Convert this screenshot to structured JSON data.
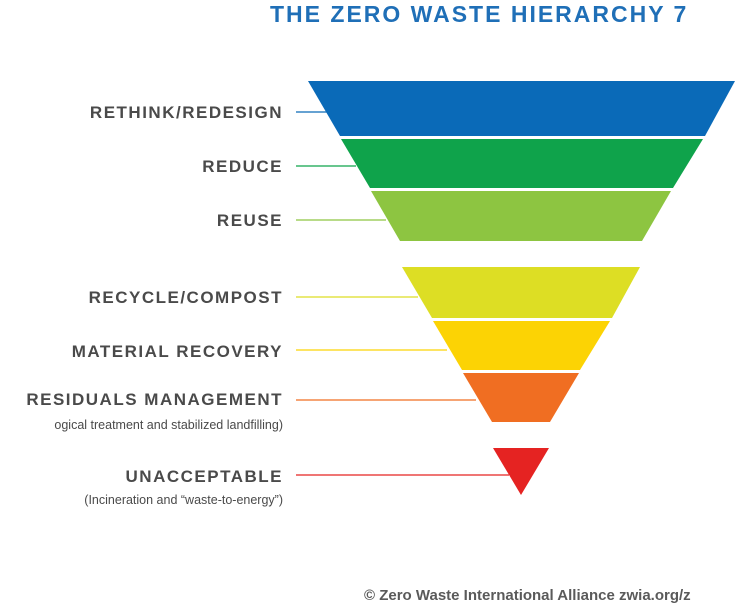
{
  "title": "THE ZERO WASTE HIERARCHY 7",
  "colors": {
    "title": "#1F6FB7",
    "label_text": "#4A4A4A",
    "credit_text": "#5A5A5A"
  },
  "levels": [
    {
      "label": "RETHINK/REDESIGN",
      "subtitle": "",
      "color": "#0A6AB8"
    },
    {
      "label": "REDUCE",
      "subtitle": "",
      "color": "#0FA34B"
    },
    {
      "label": "REUSE",
      "subtitle": "",
      "color": "#8DC541"
    },
    {
      "label": "RECYCLE/COMPOST",
      "subtitle": "",
      "color": "#DDDE24"
    },
    {
      "label": "MATERIAL RECOVERY",
      "subtitle": "",
      "color": "#FCD304"
    },
    {
      "label": "RESIDUALS MANAGEMENT",
      "subtitle": "ogical treatment and stabilized landfilling)",
      "color": "#F06E22"
    },
    {
      "label": "UNACCEPTABLE",
      "subtitle": "(Incineration and “waste-to-energy”)",
      "color": "#E52322"
    }
  ],
  "credit": "© Zero Waste International Alliance zwia.org/z"
}
